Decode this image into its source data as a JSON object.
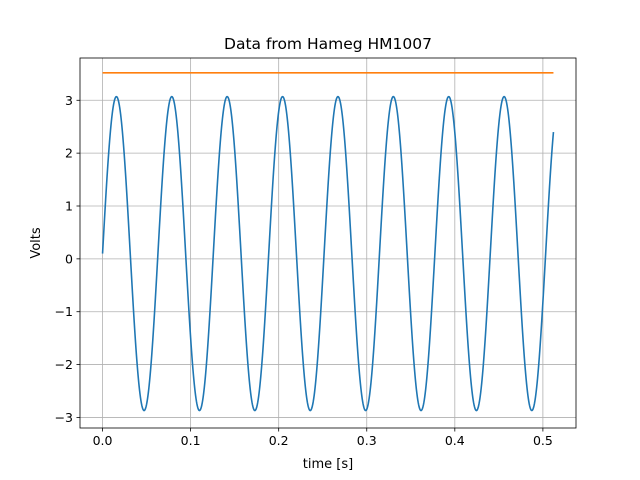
{
  "chart_data": {
    "type": "line",
    "title": "Data from Hameg HM1007",
    "xlabel": "time [s]",
    "ylabel": "Volts",
    "xlim": [
      -0.0256,
      0.5376
    ],
    "ylim": [
      -3.2,
      3.8
    ],
    "xticks": [
      0.0,
      0.1,
      0.2,
      0.3,
      0.4,
      0.5
    ],
    "xtick_labels": [
      "0.0",
      "0.1",
      "0.2",
      "0.3",
      "0.4",
      "0.5"
    ],
    "yticks": [
      -3,
      -2,
      -1,
      0,
      1,
      2,
      3
    ],
    "ytick_labels": [
      "−3",
      "−2",
      "−1",
      "0",
      "1",
      "2",
      "3"
    ],
    "grid": true,
    "series": [
      {
        "color": "#1f77b4",
        "kind": "sine",
        "x_start": 0.0,
        "x_end": 0.512,
        "amplitude": 2.97,
        "offset": 0.1,
        "frequency_hz": 15.9,
        "phase_rad": 0.0,
        "samples": 1024,
        "y_at_start": 0.15,
        "y_at_end": 2.32
      },
      {
        "color": "#ff7f0e",
        "kind": "constant",
        "x": [
          0.0,
          0.512
        ],
        "values": [
          3.52,
          3.52
        ]
      }
    ]
  }
}
